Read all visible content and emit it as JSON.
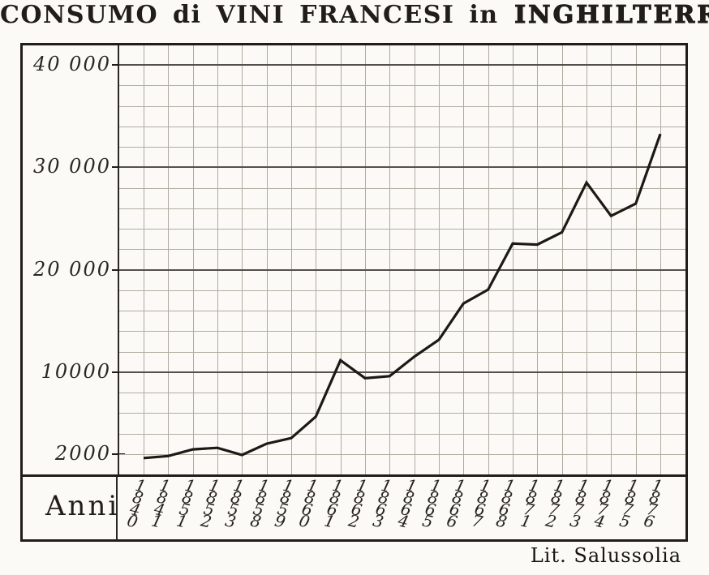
{
  "title": {
    "regular": "CONSUMO di VINI FRANCESI in",
    "bold": "INGHILTERRA"
  },
  "x_axis_title": "Anni",
  "credit": "Lit. Salussolia",
  "colors": {
    "paper": "#fbfaf6",
    "ink": "#211e19",
    "grid_minor": "#b2ada2",
    "grid_major": "#55514a",
    "line": "#1d1a15"
  },
  "chart_data": {
    "type": "line",
    "title": "CONSUMO di VINI FRANCESI in INGHILTERRA",
    "xlabel": "Anni",
    "ylabel": "",
    "categories": [
      "1840",
      "1841",
      "1851",
      "1852",
      "1853",
      "1858",
      "1859",
      "1860",
      "1861",
      "1862",
      "1863",
      "1864",
      "1865",
      "1866",
      "1867",
      "1868",
      "1871",
      "1872",
      "1873",
      "1874",
      "1875",
      "1876"
    ],
    "values": [
      1600,
      1800,
      2450,
      2600,
      1900,
      3000,
      3550,
      5650,
      11150,
      9400,
      9600,
      11500,
      13150,
      16700,
      18050,
      22550,
      22450,
      23650,
      28500,
      25250,
      26450,
      33250
    ],
    "ylim": [
      0,
      41900
    ],
    "grid": "on",
    "grid_minor_step": 2000,
    "grid_major_step": 10000,
    "y_ticks": [
      {
        "v": 40000,
        "label": "40 000"
      },
      {
        "v": 30000,
        "label": "30 000"
      },
      {
        "v": 20000,
        "label": "20 000"
      },
      {
        "v": 10000,
        "label": "10000"
      },
      {
        "v": 2000,
        "label": "2000"
      }
    ],
    "legend": "none",
    "annotation": "Lit. Salussolia"
  }
}
